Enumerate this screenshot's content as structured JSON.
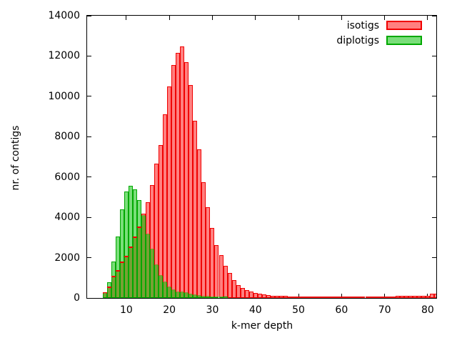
{
  "chart_data": {
    "type": "bar",
    "title": "",
    "xlabel": "k-mer depth",
    "ylabel": "nr. of contigs",
    "xlim": [
      0.9,
      82
    ],
    "ylim": [
      0,
      14000
    ],
    "xticks": [
      10,
      20,
      30,
      40,
      50,
      60,
      70,
      80
    ],
    "yticks": [
      0,
      2000,
      4000,
      6000,
      8000,
      10000,
      12000,
      14000
    ],
    "grid": false,
    "legend_position": "top-right-inside",
    "bar_width": 1,
    "overlap_color": "#78a034",
    "axis_color": "#000000",
    "series": [
      {
        "name": "isotigs",
        "fill": "#ff8080",
        "border": "#f00000",
        "x": [
          5,
          6,
          7,
          8,
          9,
          10,
          11,
          12,
          13,
          14,
          15,
          16,
          17,
          18,
          19,
          20,
          21,
          22,
          23,
          24,
          25,
          26,
          27,
          28,
          29,
          30,
          31,
          32,
          33,
          34,
          35,
          36,
          37,
          38,
          39,
          40,
          41,
          42,
          43,
          44,
          45,
          46,
          47,
          48,
          49,
          50,
          51,
          52,
          53,
          54,
          55,
          56,
          57,
          58,
          59,
          60,
          61,
          62,
          63,
          64,
          65,
          66,
          67,
          68,
          69,
          70,
          71,
          72,
          73,
          74,
          75,
          76,
          77,
          78,
          79,
          80,
          81,
          82
        ],
        "values": [
          280,
          520,
          1050,
          1350,
          1760,
          2050,
          2500,
          3000,
          3520,
          4170,
          4760,
          5590,
          6650,
          7590,
          9100,
          10480,
          11570,
          12150,
          12470,
          11680,
          10570,
          8800,
          7380,
          5760,
          4500,
          3460,
          2640,
          2110,
          1600,
          1230,
          870,
          640,
          480,
          400,
          310,
          260,
          210,
          190,
          150,
          120,
          110,
          105,
          100,
          60,
          60,
          60,
          60,
          55,
          45,
          40,
          35,
          25,
          25,
          25,
          20,
          20,
          20,
          15,
          10,
          10,
          10,
          10,
          10,
          10,
          10,
          10,
          10,
          20,
          100,
          100,
          100,
          100,
          100,
          100,
          100,
          100,
          220,
          220
        ]
      },
      {
        "name": "diplotigs",
        "fill": "#7ade7a",
        "border": "#00a800",
        "x": [
          5,
          6,
          7,
          8,
          9,
          10,
          11,
          12,
          13,
          14,
          15,
          16,
          17,
          18,
          19,
          20,
          21,
          22,
          23,
          24,
          25,
          26,
          27,
          28,
          29,
          30,
          31,
          32,
          33
        ],
        "values": [
          210,
          790,
          1810,
          3050,
          4410,
          5290,
          5560,
          5390,
          4860,
          4080,
          3170,
          2420,
          1640,
          1110,
          780,
          520,
          400,
          300,
          280,
          235,
          175,
          140,
          105,
          82,
          59,
          47,
          35,
          24,
          15
        ]
      }
    ]
  }
}
